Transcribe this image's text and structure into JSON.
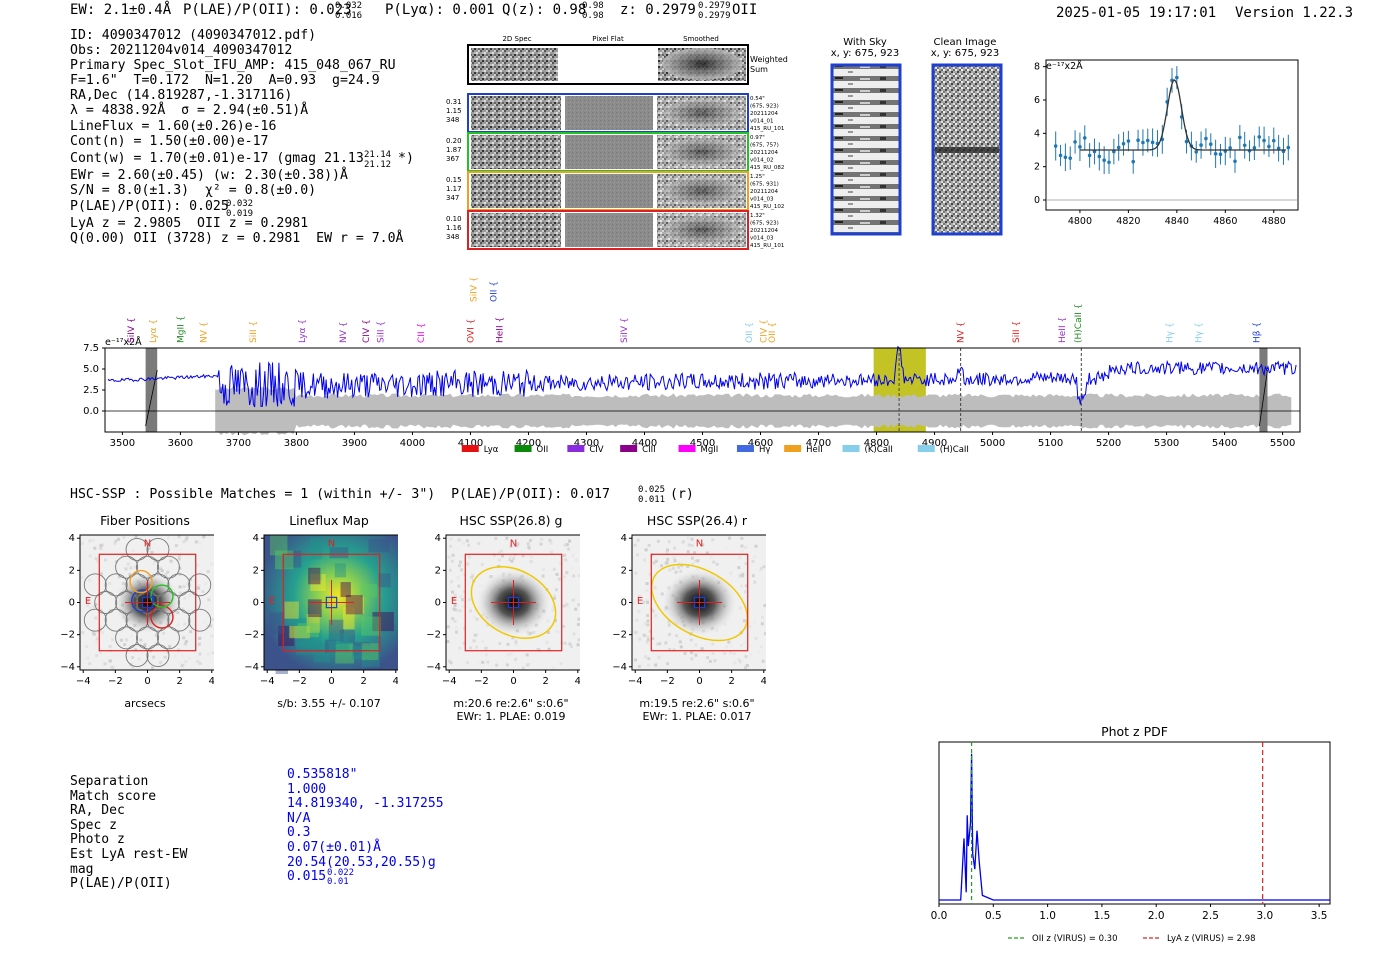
{
  "header": {
    "ew": "EW: 2.1±0.4Å",
    "plae": "P(LAE)/P(OII): 0.023",
    "plae_hi": "0.032",
    "plae_lo": "0.016",
    "plya": "P(Lyα): 0.001",
    "qz": "Q(z): 0.98",
    "qz_hi": "0.98",
    "qz_lo": "0.98",
    "z": "z: 0.2979",
    "z_hi": "0.2979",
    "z_lo": "0.2979",
    "z_line": "OII",
    "timestamp": "2025-01-05 19:17:01",
    "version": "Version 1.22.3"
  },
  "info": {
    "id": "ID: 4090347012 (4090347012.pdf)",
    "obs": "Obs: 20211204v014_4090347012",
    "primary": "Primary Spec_Slot_IFU_AMP: 415_048_067_RU",
    "fit": "F=1.6\"  T=0.172  N=1.20  A=0.93  g=24.9",
    "radec": "RA,Dec (14.819287,-1.317116)",
    "lambda": "λ = 4838.92Å  σ = 2.94(±0.51)Å",
    "lineflux": "LineFlux = 1.60(±0.26)e-16",
    "contn": "Cont(n) = 1.50(±0.00)e-17",
    "contw": "Cont(w) = 1.70(±0.01)e-17 (gmag 21.13",
    "contw_hi": "21.14",
    "contw_lo": "21.12",
    "contw_end": "*)",
    "ewr": "EWr = 2.60(±0.45) (w: 2.30(±0.38))Å",
    "sn": "S/N = 8.0(±1.3)  χ² = 0.8(±0.0)",
    "plae": "P(LAE)/P(OII): 0.025",
    "plae_hi": "0.032",
    "plae_lo": "0.019",
    "lyaz": "LyA z = 2.9805  OII z = 0.2981",
    "q": "Q(0.00) OII (3728) z = 0.2981  EW r = 7.0Å"
  },
  "spec2d": {
    "col_labels": [
      "2D Spec",
      "Pixel Flat",
      "Smoothed"
    ],
    "weighted_label": [
      "Weighted",
      "Sum"
    ],
    "rows": [
      {
        "left": [
          "0.31",
          "1.15",
          "348"
        ],
        "right": [
          "0.54\"",
          "(675, 923)",
          "20211204",
          "v014_01",
          "415_RU_101"
        ],
        "color": "#1f3fd0"
      },
      {
        "left": [
          "0.20",
          "1.87",
          "367"
        ],
        "right": [
          "0.97\"",
          "(675, 757)",
          "20211204",
          "v014_02",
          "415_RU_082"
        ],
        "color": "#22c422"
      },
      {
        "left": [
          "0.15",
          "1.17",
          "347"
        ],
        "right": [
          "1.25\"",
          "(675, 931)",
          "20211204",
          "v014_03",
          "415_RU_102"
        ],
        "color": "#f0a020"
      },
      {
        "left": [
          "0.10",
          "1.16",
          "348"
        ],
        "right": [
          "1.32\"",
          "(675, 923)",
          "20211204",
          "v014_03",
          "415_RU_101"
        ],
        "color": "#e02020"
      }
    ]
  },
  "cutouts": {
    "sky_title": "With Sky",
    "sky_sub": "x, y: 675, 923",
    "clean_title": "Clean Image",
    "clean_sub": "x, y: 675, 923"
  },
  "zoom_plot": {
    "ylabel": "e⁻¹⁷x2Å",
    "x_ticks": [
      "4800",
      "4820",
      "4840",
      "4860",
      "4880"
    ],
    "y_ticks": [
      "0",
      "2",
      "4",
      "6",
      "8"
    ]
  },
  "chart_data": [
    {
      "type": "line",
      "title": "Full spectrum",
      "ylabel": "e⁻¹⁷x2Å",
      "xlim": [
        3470,
        5530
      ],
      "ylim": [
        -2.5,
        7.5
      ],
      "x_ticks": [
        "3500",
        "3600",
        "3700",
        "3800",
        "3900",
        "4000",
        "4100",
        "4200",
        "4300",
        "4400",
        "4500",
        "4600",
        "4700",
        "4800",
        "4900",
        "5000",
        "5100",
        "5200",
        "5300",
        "5400",
        "5500"
      ],
      "y_ticks": [
        "0.0",
        "2.5",
        "5.0",
        "7.5"
      ],
      "highlight_range": [
        4795,
        4885
      ],
      "line_markers": [
        {
          "label": "SiIV",
          "x": 3515,
          "color": "#8b008b",
          "tier": 0
        },
        {
          "label": "Lyα",
          "x": 3553,
          "color": "#f0a020",
          "tier": 0
        },
        {
          "label": "MgII",
          "x": 3600,
          "color": "#228b22",
          "tier": 0
        },
        {
          "label": "NV",
          "x": 3640,
          "color": "#f0a020",
          "tier": 0
        },
        {
          "label": "SiII",
          "x": 3725,
          "color": "#f0a020",
          "tier": 0
        },
        {
          "label": "Lyα",
          "x": 3810,
          "color": "#9932cc",
          "tier": 0
        },
        {
          "label": "NV",
          "x": 3880,
          "color": "#9932cc",
          "tier": 0
        },
        {
          "label": "CIV",
          "x": 3920,
          "color": "#8b008b",
          "tier": 0
        },
        {
          "label": "SiII",
          "x": 3945,
          "color": "#9932cc",
          "tier": 0
        },
        {
          "label": "CII",
          "x": 4015,
          "color": "#ff00ff",
          "tier": 0
        },
        {
          "label": "OVI",
          "x": 4100,
          "color": "#e02020",
          "tier": 0
        },
        {
          "label": "SiIV",
          "x": 4105,
          "color": "#f0a020",
          "tier": 1
        },
        {
          "label": "OII",
          "x": 4140,
          "color": "#1f3fd0",
          "tier": 1
        },
        {
          "label": "HeII",
          "x": 4150,
          "color": "#8b008b",
          "tier": 0
        },
        {
          "label": "SiIV",
          "x": 4365,
          "color": "#9932cc",
          "tier": 0
        },
        {
          "label": "OII",
          "x": 4580,
          "color": "#87ceeb",
          "tier": 0
        },
        {
          "label": "CIV",
          "x": 4605,
          "color": "#f0a020",
          "tier": 0
        },
        {
          "label": "OII",
          "x": 4620,
          "color": "#f0a020",
          "tier": 0
        },
        {
          "label": "NV",
          "x": 4945,
          "color": "#e02020",
          "tier": 0
        },
        {
          "label": "SiII",
          "x": 5040,
          "color": "#e02020",
          "tier": 0
        },
        {
          "label": "HeII",
          "x": 5120,
          "color": "#9932cc",
          "tier": 0
        },
        {
          "label": "(H)CaII",
          "x": 5147,
          "color": "#228b22",
          "tier": 0
        },
        {
          "label": "Hγ",
          "x": 5305,
          "color": "#87ceeb",
          "tier": 0
        },
        {
          "label": "Hγ",
          "x": 5355,
          "color": "#87ceeb",
          "tier": 0
        },
        {
          "label": "Hβ",
          "x": 5455,
          "color": "#1f3fd0",
          "tier": 0
        }
      ],
      "dashed_lines": [
        4838.9,
        4945,
        5153
      ],
      "legend": [
        {
          "label": "Lyα",
          "color": "#e61010"
        },
        {
          "label": "OII",
          "color": "#0a8a0a"
        },
        {
          "label": "CIV",
          "color": "#8a2be2"
        },
        {
          "label": "CIII",
          "color": "#8b008b"
        },
        {
          "label": "MgII",
          "color": "#ff00ff"
        },
        {
          "label": "Hγ",
          "color": "#4169e1"
        },
        {
          "label": "HeII",
          "color": "#f0a020"
        },
        {
          "label": "(K)CaII",
          "color": "#87ceeb"
        },
        {
          "label": "(H)CaII",
          "color": "#87ceeb"
        }
      ]
    },
    {
      "type": "line",
      "title": "Phot z PDF",
      "xlim": [
        0,
        3.6
      ],
      "x_ticks": [
        "0.0",
        "0.5",
        "1.0",
        "1.5",
        "2.0",
        "2.5",
        "3.0",
        "3.5"
      ],
      "peak_z": 0.3,
      "oii_z": 0.3,
      "lya_z": 2.98,
      "legend": [
        {
          "label": "OII z (VIRUS) = 0.30",
          "color": "#22a022"
        },
        {
          "label": "LyA z (VIRUS) = 2.98",
          "color": "#e02020"
        }
      ]
    }
  ],
  "hsc": {
    "line": "HSC-SSP : Possible Matches = 1 (within +/- 3\")  P(LAE)/P(OII): 0.017",
    "hi": "0.025",
    "lo": "0.011",
    "band": "(r)"
  },
  "panels": [
    {
      "title": "Fiber Positions",
      "caption1": "arcsecs",
      "caption2": "",
      "caption3": ""
    },
    {
      "title": "Lineflux Map",
      "caption1": "s/b: 3.55 +/- 0.107",
      "caption2": "",
      "caption3": ""
    },
    {
      "title": "HSC SSP(26.8) g",
      "caption1": "m:20.6  re:2.6\"  s:0.6\"",
      "caption2": "EWr: 1. PLAE: 0.019",
      "caption3": ""
    },
    {
      "title": "HSC SSP(26.4) r",
      "caption1": "m:19.5  re:2.6\"  s:0.6\"",
      "caption2": "EWr: 1. PLAE: 0.017",
      "caption3": ""
    }
  ],
  "panel_ticks": [
    "−4",
    "−2",
    "0",
    "2",
    "4"
  ],
  "compass": {
    "n": "N",
    "e": "E"
  },
  "match": {
    "labels": [
      "Separation",
      "Match score",
      "RA, Dec",
      "Spec z",
      "Photo z",
      "Est LyA rest-EW",
      "mag",
      "P(LAE)/P(OII)"
    ],
    "values": [
      "0.535818\"",
      "1.000",
      "14.819340, -1.317255",
      "N/A",
      "0.3",
      "0.07(±0.01)Å",
      "20.54(20.53,20.55)g",
      "0.015"
    ],
    "plae_hi": "0.022",
    "plae_lo": "0.01"
  }
}
